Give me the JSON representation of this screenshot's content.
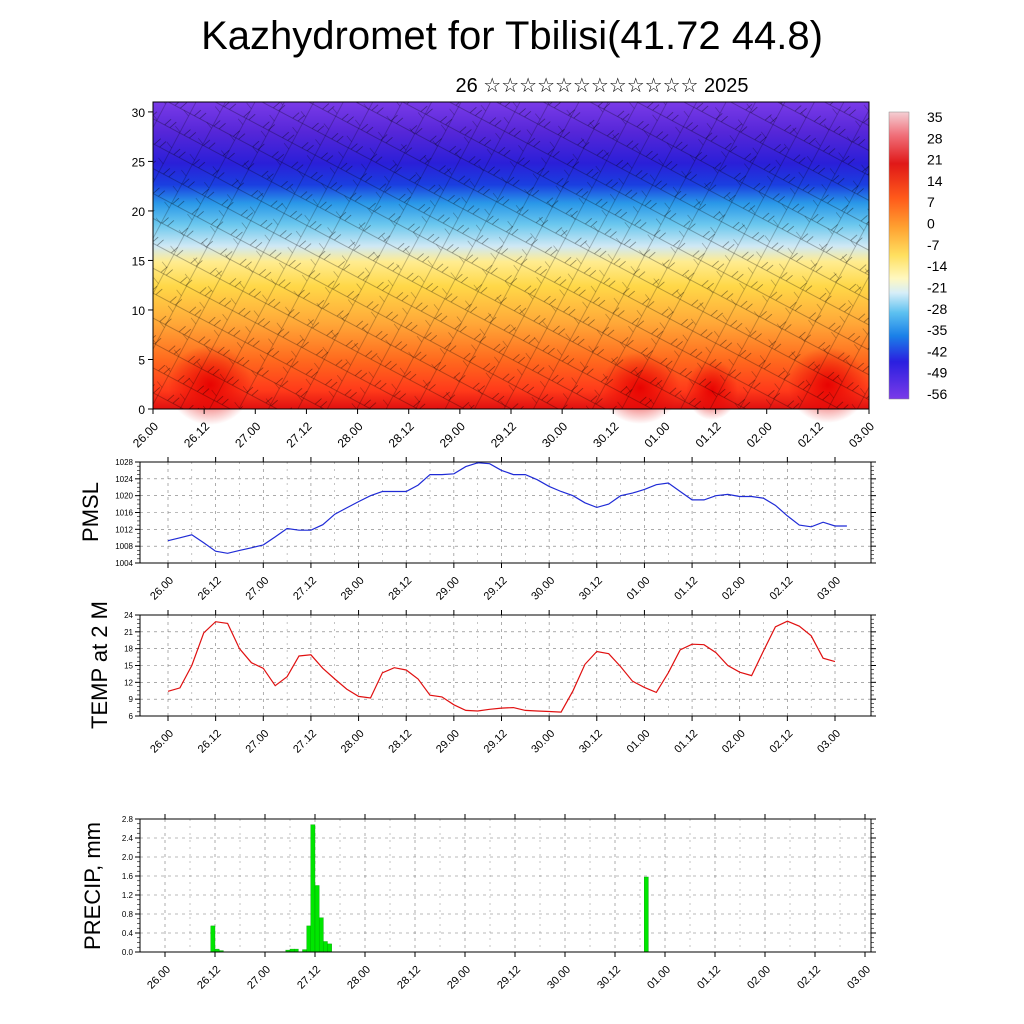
{
  "header": {
    "title": "Kazhydromet for Tbilisi(41.72 44.8)",
    "subtitle": "26 ☆☆☆☆☆☆☆☆☆☆☆☆ 2025"
  },
  "time_labels": [
    "26.00",
    "26.12",
    "27.00",
    "27.12",
    "28.00",
    "28.12",
    "29.00",
    "29.12",
    "30.00",
    "30.12",
    "01.00",
    "01.12",
    "02.00",
    "02.12",
    "03.00"
  ],
  "colors": {
    "pmsl_line": "#1f2bd6",
    "temp_line": "#e01010",
    "precip_bar": "#00e600"
  },
  "chart_data": [
    {
      "type": "heatmap",
      "name": "cross-section",
      "yticks": [
        "0",
        "5",
        "10",
        "15",
        "20",
        "25",
        "30"
      ],
      "ylim": [
        0,
        31
      ],
      "colorbar_labels": [
        "35",
        "28",
        "21",
        "14",
        "7",
        "0",
        "-7",
        "-14",
        "-21",
        "-28",
        "-35",
        "-42",
        "-49",
        "-56"
      ],
      "colorbar_range": [
        -60,
        38
      ],
      "overlay": "wind barbs",
      "x_labels_ref": "time_labels"
    },
    {
      "type": "line",
      "ylabel": "PMSL",
      "yticks": [
        "1004",
        "1008",
        "1012",
        "1016",
        "1020",
        "1024",
        "1028"
      ],
      "ylim": [
        1004,
        1028
      ],
      "x_labels_ref": "time_labels",
      "values": [
        1009.3,
        1010.0,
        1010.7,
        1008.8,
        1006.8,
        1006.3,
        1007.0,
        1007.6,
        1008.3,
        1010.2,
        1012.2,
        1011.8,
        1011.8,
        1013.1,
        1015.6,
        1017.1,
        1018.6,
        1020.0,
        1021.0,
        1021.0,
        1021.0,
        1022.5,
        1025.0,
        1025.0,
        1025.2,
        1026.9,
        1027.8,
        1027.6,
        1026.0,
        1025.0,
        1025.0,
        1023.8,
        1022.2,
        1021.0,
        1020.0,
        1018.3,
        1017.2,
        1018.0,
        1020.0,
        1020.6,
        1021.5,
        1022.6,
        1023.0,
        1021.0,
        1019.0,
        1019.0,
        1020.0,
        1020.3,
        1019.8,
        1019.8,
        1019.4,
        1017.7,
        1015.2,
        1013.0,
        1012.6,
        1013.7,
        1012.8,
        1012.8
      ]
    },
    {
      "type": "line",
      "ylabel": "TEMP at 2 M",
      "yticks": [
        "6",
        "9",
        "12",
        "15",
        "18",
        "21",
        "24"
      ],
      "ylim": [
        6,
        24
      ],
      "x_labels_ref": "time_labels",
      "values": [
        10.4,
        11.0,
        15.0,
        20.8,
        22.8,
        22.5,
        18.0,
        15.5,
        14.5,
        11.4,
        13.0,
        16.7,
        16.9,
        14.5,
        12.6,
        10.8,
        9.5,
        9.2,
        13.7,
        14.6,
        14.2,
        12.6,
        9.7,
        9.4,
        8.0,
        7.0,
        6.9,
        7.2,
        7.4,
        7.5,
        7.0,
        6.9,
        6.8,
        6.7,
        10.5,
        15.2,
        17.5,
        17.1,
        14.8,
        12.2,
        11.1,
        10.2,
        13.7,
        17.8,
        18.8,
        18.7,
        17.3,
        15.0,
        13.8,
        13.2,
        17.6,
        21.9,
        22.9,
        22.0,
        20.3,
        16.3,
        15.7
      ]
    },
    {
      "type": "bar",
      "ylabel": "PRECIP, mm",
      "yticks": [
        "0.0",
        "0.4",
        "0.8",
        "1.2",
        "1.6",
        "2.0",
        "2.4",
        "2.8"
      ],
      "ylim": [
        0,
        2.8
      ],
      "x_labels_ref": "time_labels",
      "values": [
        0,
        0,
        0,
        0,
        0,
        0,
        0,
        0,
        0,
        0,
        0,
        0.55,
        0.06,
        0.03,
        0,
        0,
        0,
        0,
        0,
        0,
        0,
        0,
        0,
        0,
        0,
        0,
        0,
        0,
        0,
        0.04,
        0.06,
        0.06,
        0,
        0.05,
        0.55,
        2.68,
        1.4,
        0.72,
        0.22,
        0.17,
        0,
        0,
        0,
        0,
        0,
        0,
        0,
        0,
        0,
        0,
        0,
        0,
        0,
        0,
        0,
        0,
        0,
        0,
        0,
        0,
        0,
        0,
        0,
        0,
        0,
        0,
        0,
        0,
        0,
        0,
        0,
        0,
        0,
        0,
        0,
        0,
        0,
        0,
        0,
        0,
        0,
        0,
        0,
        0,
        0,
        0,
        0,
        0,
        0,
        0,
        0,
        0,
        0,
        0,
        0,
        0,
        0,
        0,
        0,
        0,
        0,
        0,
        0,
        0,
        0,
        0,
        0,
        0,
        0,
        0,
        0,
        0,
        0,
        0,
        0,
        1.58,
        0
      ]
    }
  ]
}
